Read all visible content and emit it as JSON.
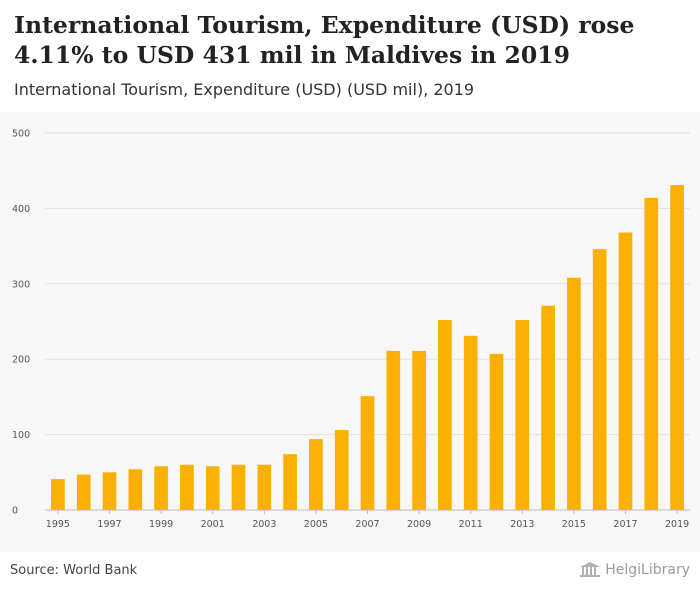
{
  "header": {
    "title": "International Tourism, Expenditure (USD) rose 4.11% to USD 431 mil in Maldives in 2019",
    "subtitle": "International Tourism, Expenditure (USD) (USD mil), 2019"
  },
  "footer": {
    "source": "Source: World Bank",
    "brand": "HelgiLibrary"
  },
  "colors": {
    "bar": "#f9b000",
    "grid": "#e2e2e2",
    "background": "#f7f7f7"
  },
  "chart_data": {
    "type": "bar",
    "title": "International Tourism, Expenditure (USD) rose 4.11% to USD 431 mil in Maldives in 2019",
    "subtitle": "International Tourism, Expenditure (USD) (USD mil), 2019",
    "xlabel": "",
    "ylabel": "",
    "ylim": [
      0,
      500
    ],
    "yticks": [
      0,
      100,
      200,
      300,
      400,
      500
    ],
    "grid": true,
    "categories": [
      "1995",
      "1996",
      "1997",
      "1998",
      "1999",
      "2000",
      "2001",
      "2002",
      "2003",
      "2004",
      "2005",
      "2006",
      "2007",
      "2008",
      "2009",
      "2010",
      "2011",
      "2012",
      "2013",
      "2014",
      "2015",
      "2016",
      "2017",
      "2018",
      "2019"
    ],
    "xtick_labels": [
      "1995",
      "1997",
      "1999",
      "2001",
      "2003",
      "2005",
      "2007",
      "2009",
      "2011",
      "2013",
      "2015",
      "2017",
      "2019"
    ],
    "values": [
      41,
      47,
      50,
      54,
      58,
      60,
      58,
      60,
      60,
      74,
      94,
      106,
      151,
      211,
      211,
      252,
      231,
      207,
      252,
      271,
      308,
      346,
      368,
      414,
      431
    ]
  }
}
